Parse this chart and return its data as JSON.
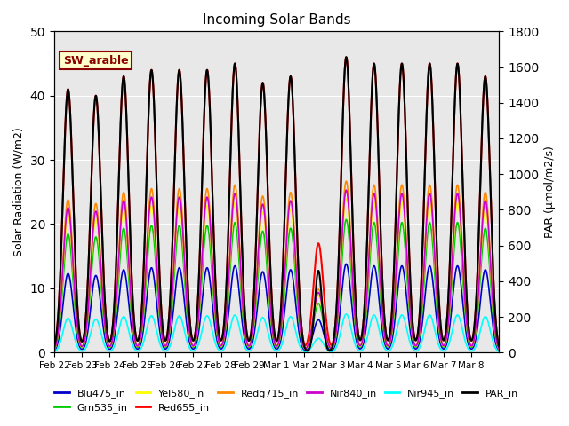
{
  "title": "Incoming Solar Bands",
  "ylabel_left": "Solar Radiation (W/m2)",
  "ylabel_right": "PAR (μmol/m2/s)",
  "ylim_left": [
    0,
    50
  ],
  "ylim_right": [
    0,
    1800
  ],
  "background_color": "#e8e8e8",
  "annotation_text": "SW_arable",
  "annotation_color": "#8B0000",
  "annotation_bg": "#ffffcc",
  "series": [
    {
      "label": "Blu475_in",
      "color": "#0000cc",
      "lw": 1.2
    },
    {
      "label": "Grn535_in",
      "color": "#00cc00",
      "lw": 1.2
    },
    {
      "label": "Yel580_in",
      "color": "#ffff00",
      "lw": 1.2
    },
    {
      "label": "Red655_in",
      "color": "#ff0000",
      "lw": 1.5
    },
    {
      "label": "Redg715_in",
      "color": "#ff8800",
      "lw": 1.2
    },
    {
      "label": "Nir840_in",
      "color": "#cc00cc",
      "lw": 1.2
    },
    {
      "label": "Nir945_in",
      "color": "#00ffff",
      "lw": 1.2
    },
    {
      "label": "PAR_in",
      "color": "#000000",
      "lw": 1.5
    }
  ],
  "xtick_labels": [
    "Feb 22",
    "Feb 23",
    "Feb 24",
    "Feb 25",
    "Feb 26",
    "Feb 27",
    "Feb 28",
    "Feb 29",
    "Mar 1",
    "Mar 2",
    "Mar 3",
    "Mar 4",
    "Mar 5",
    "Mar 6",
    "Mar 7",
    "Mar 8"
  ],
  "day_peaks_sw": [
    41,
    40,
    43,
    44,
    44,
    44,
    45,
    42,
    43,
    17,
    46,
    45,
    45,
    45,
    45,
    43
  ],
  "day_peaks_par_scale": 36,
  "band_fracs": {
    "Blu475_in": 0.3,
    "Grn535_in": 0.45,
    "Yel580_in": 0.52,
    "Red655_in": 1.0,
    "Redg715_in": 0.58,
    "Nir840_in": 0.55,
    "Nir945_in": 0.13
  }
}
